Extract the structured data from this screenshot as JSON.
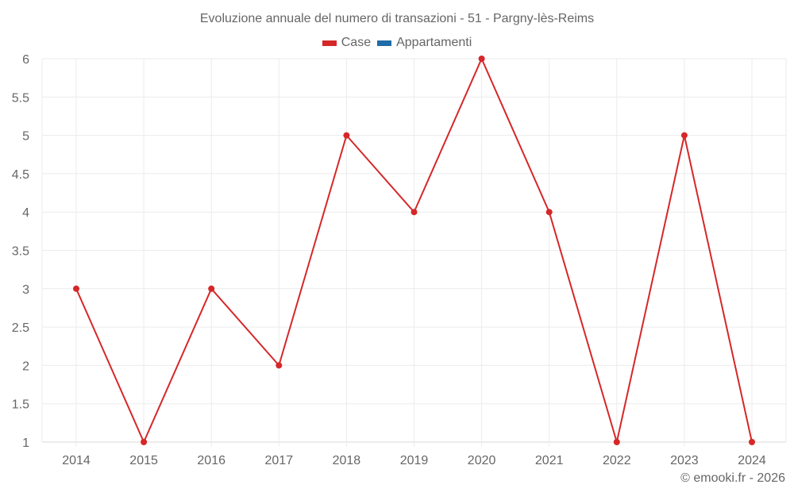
{
  "title": "Evoluzione annuale del numero di transazioni - 51 - Pargny-lès-Reims",
  "legend": [
    {
      "label": "Case",
      "color": "#d62728"
    },
    {
      "label": "Appartamenti",
      "color": "#1f6ca8"
    }
  ],
  "credit": "© emooki.fr - 2026",
  "chart_data": {
    "type": "line",
    "title": "Evoluzione annuale del numero di transazioni - 51 - Pargny-lès-Reims",
    "xlabel": "",
    "ylabel": "",
    "categories": [
      "2014",
      "2015",
      "2016",
      "2017",
      "2018",
      "2019",
      "2020",
      "2021",
      "2022",
      "2023",
      "2024"
    ],
    "series": [
      {
        "name": "Case",
        "color": "#d62728",
        "values": [
          3,
          1,
          3,
          2,
          5,
          4,
          6,
          4,
          1,
          5,
          1
        ]
      },
      {
        "name": "Appartamenti",
        "color": "#1f6ca8",
        "values": []
      }
    ],
    "ylim": [
      1,
      6
    ],
    "yticks": [
      "1",
      "1.5",
      "2",
      "2.5",
      "3",
      "3.5",
      "4",
      "4.5",
      "5",
      "5.5",
      "6"
    ],
    "grid": true,
    "legend_position": "top"
  }
}
